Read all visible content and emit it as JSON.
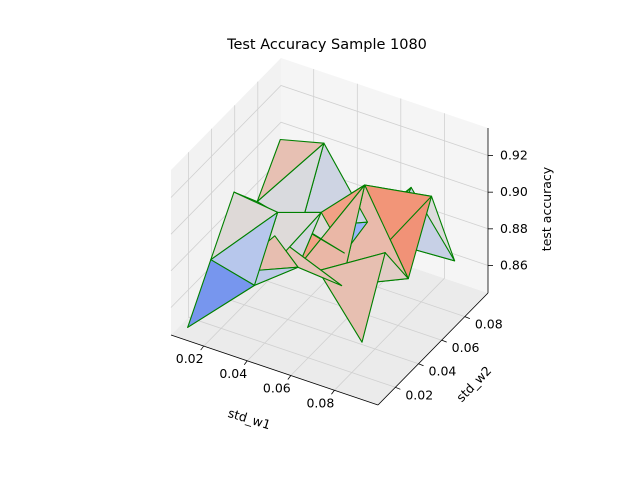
{
  "chart_data": {
    "type": "surface3d",
    "title": "Test Accuracy Sample 1080",
    "xlabel": "std_w1",
    "ylabel": "std_w2",
    "zlabel": "test accuracy",
    "x_ticks": [
      "0.02",
      "0.04",
      "0.06",
      "0.08"
    ],
    "y_ticks": [
      "0.02",
      "0.04",
      "0.06",
      "0.08"
    ],
    "z_ticks": [
      "0.86",
      "0.88",
      "0.90",
      "0.92"
    ],
    "xlim": [
      0.005,
      0.1
    ],
    "ylim": [
      0.005,
      0.1
    ],
    "zlim": [
      0.845,
      0.935
    ],
    "grid": true,
    "edge_color": "#008000",
    "colormap": "coolwarm",
    "x": [
      0.01,
      0.03,
      0.05,
      0.07,
      0.09
    ],
    "y": [
      0.01,
      0.03,
      0.05,
      0.07,
      0.09
    ],
    "z": [
      [
        0.848,
        0.872,
        0.896,
        0.878,
        0.899
      ],
      [
        0.886,
        0.866,
        0.893,
        0.872,
        0.905
      ],
      [
        0.914,
        0.884,
        0.901,
        0.866,
        0.87
      ],
      [
        0.903,
        0.882,
        0.924,
        0.88,
        0.897
      ],
      [
        0.872,
        0.908,
        0.881,
        0.913,
        0.865
      ]
    ]
  }
}
